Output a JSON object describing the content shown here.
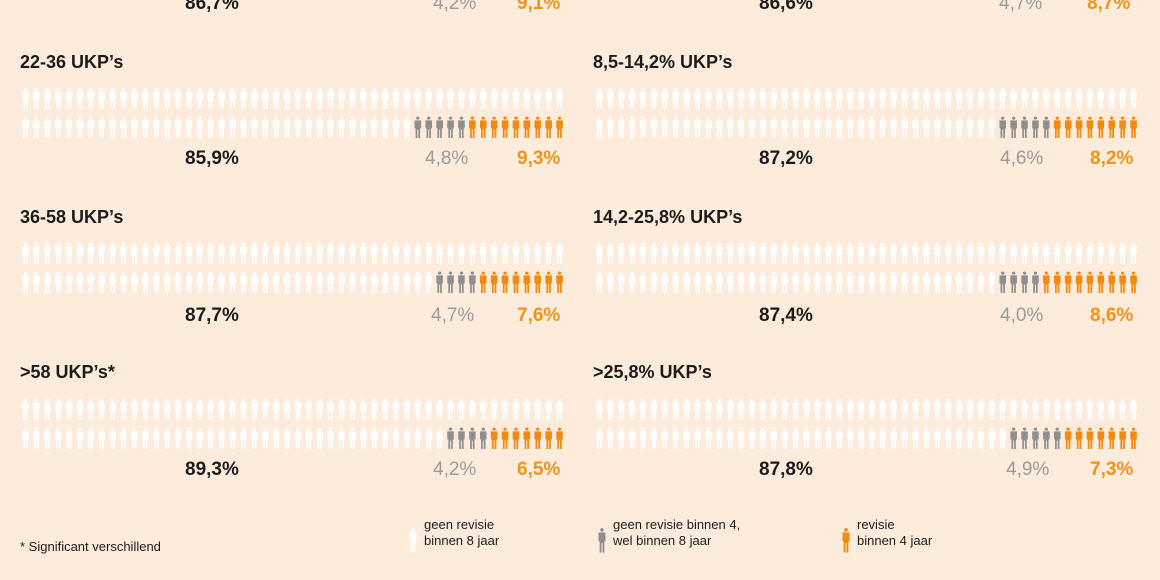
{
  "colors": {
    "white": "#ffffff",
    "gray": "#8f8f8f",
    "orange": "#f08a10"
  },
  "top_partial": {
    "left": {
      "main": "86,7%",
      "gray": "4,2%",
      "orange": "9,1%"
    },
    "right": {
      "main": "86,6%",
      "gray": "4,7%",
      "orange": "8,7%"
    }
  },
  "chart_data": [
    {
      "type": "pictogram",
      "title": "22-36 UKP’s",
      "geen_revisie_binnen_8_jaar": 85.9,
      "geen_revisie_binnen_4_wel_binnen_8_jaar": 4.8,
      "revisie_binnen_4_jaar": 9.3,
      "labels": [
        "85,9%",
        "4,8%",
        "9,3%"
      ]
    },
    {
      "type": "pictogram",
      "title": "8,5-14,2% UKP’s",
      "geen_revisie_binnen_8_jaar": 87.2,
      "geen_revisie_binnen_4_wel_binnen_8_jaar": 4.6,
      "revisie_binnen_4_jaar": 8.2,
      "labels": [
        "87,2%",
        "4,6%",
        "8,2%"
      ]
    },
    {
      "type": "pictogram",
      "title": "36-58 UKP’s",
      "geen_revisie_binnen_8_jaar": 87.7,
      "geen_revisie_binnen_4_wel_binnen_8_jaar": 4.7,
      "revisie_binnen_4_jaar": 7.6,
      "labels": [
        "87,7%",
        "4,7%",
        "7,6%"
      ]
    },
    {
      "type": "pictogram",
      "title": "14,2-25,8% UKP’s",
      "geen_revisie_binnen_8_jaar": 87.4,
      "geen_revisie_binnen_4_wel_binnen_8_jaar": 4.0,
      "revisie_binnen_4_jaar": 8.6,
      "labels": [
        "87,4%",
        "4,0%",
        "8,6%"
      ]
    },
    {
      "type": "pictogram",
      "title": ">58 UKP’s*",
      "geen_revisie_binnen_8_jaar": 89.3,
      "geen_revisie_binnen_4_wel_binnen_8_jaar": 4.2,
      "revisie_binnen_4_jaar": 6.5,
      "labels": [
        "89,3%",
        "4,2%",
        "6,5%"
      ]
    },
    {
      "type": "pictogram",
      "title": ">25,8% UKP’s",
      "geen_revisie_binnen_8_jaar": 87.8,
      "geen_revisie_binnen_4_wel_binnen_8_jaar": 4.9,
      "revisie_binnen_4_jaar": 7.3,
      "labels": [
        "87,8%",
        "4,9%",
        "7,3%"
      ]
    }
  ],
  "legend": [
    {
      "line1": "geen revisie",
      "line2": "binnen 8 jaar",
      "color": "#ffffff"
    },
    {
      "line1": "geen revisie binnen 4,",
      "line2": "wel binnen 8 jaar",
      "color": "#8f8f8f"
    },
    {
      "line1": "revisie",
      "line2": "binnen 4 jaar",
      "color": "#f08a10"
    }
  ],
  "footnote": "* Significant verschillend"
}
